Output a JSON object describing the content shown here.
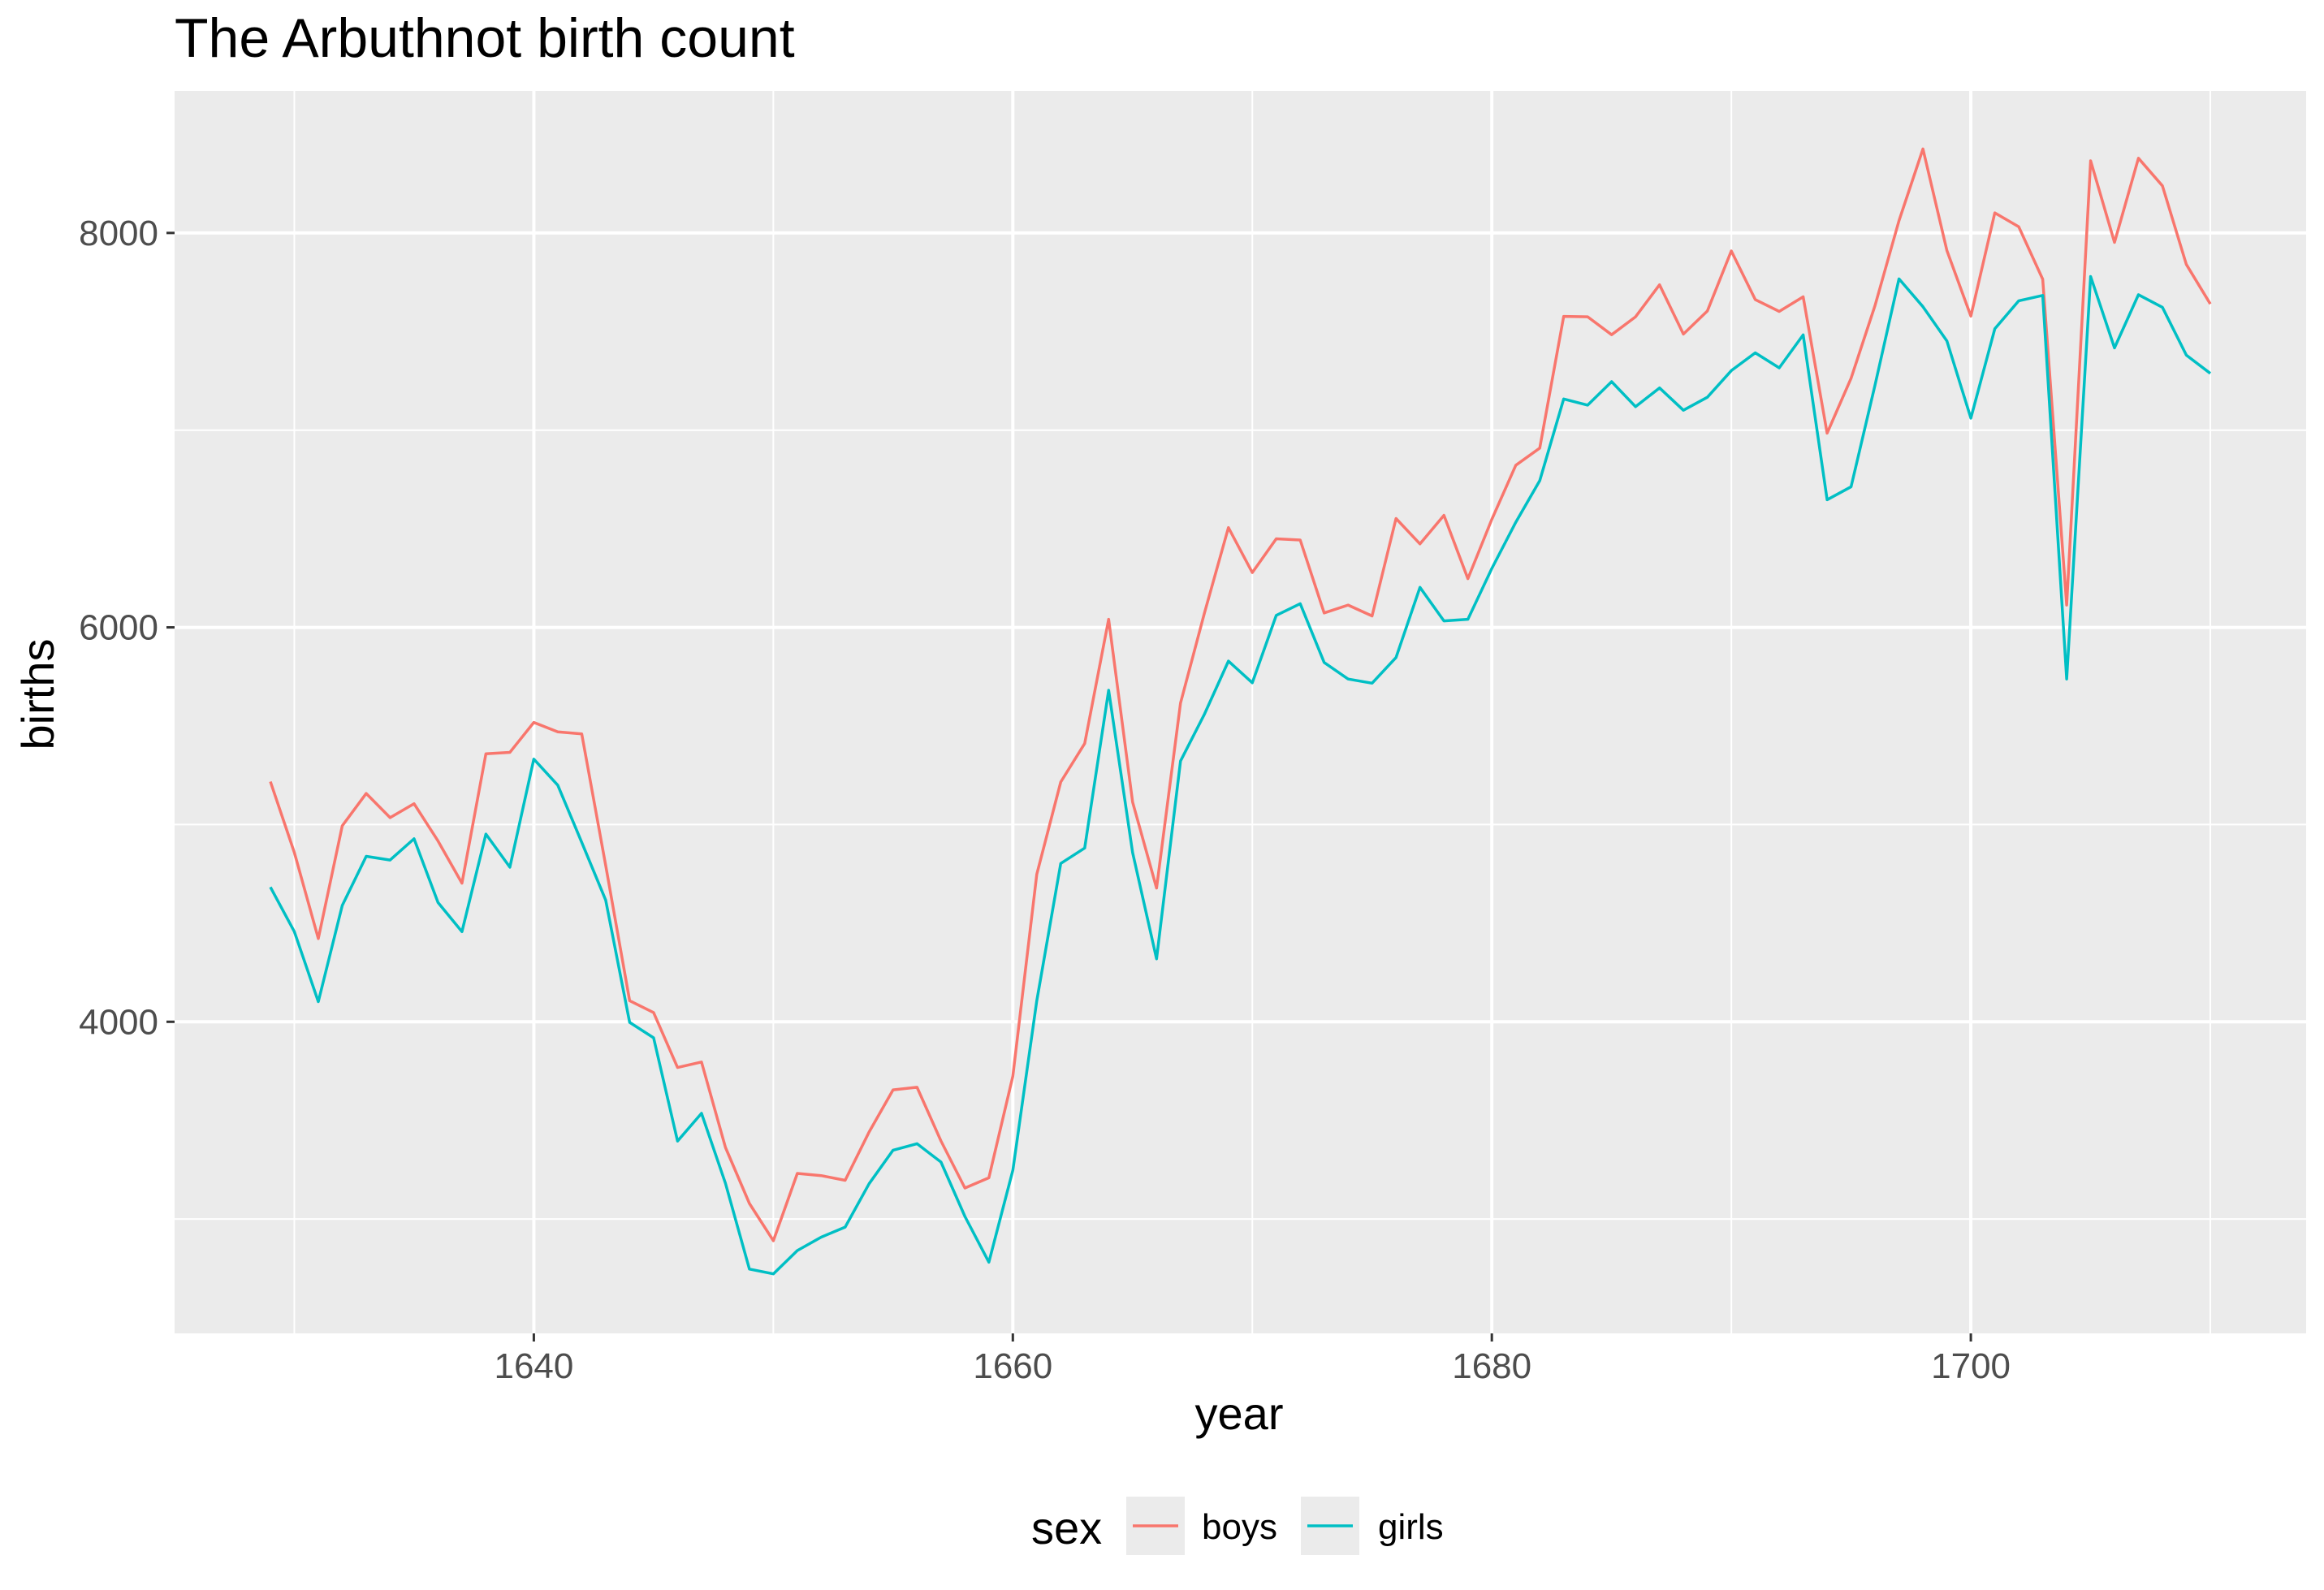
{
  "chart_data": {
    "type": "line",
    "title": "The Arbuthnot birth count",
    "xlabel": "year",
    "ylabel": "births",
    "x_ticks": [
      1640,
      1660,
      1680,
      1700
    ],
    "y_ticks": [
      4000,
      6000,
      8000
    ],
    "xlim": [
      1625,
      1714
    ],
    "ylim": [
      2420,
      8720
    ],
    "grid": true,
    "legend": {
      "title": "sex",
      "position": "bottom",
      "entries": [
        "boys",
        "girls"
      ]
    },
    "x": [
      1629,
      1630,
      1631,
      1632,
      1633,
      1634,
      1635,
      1636,
      1637,
      1638,
      1639,
      1640,
      1641,
      1642,
      1643,
      1644,
      1645,
      1646,
      1647,
      1648,
      1649,
      1650,
      1651,
      1652,
      1653,
      1654,
      1655,
      1656,
      1657,
      1658,
      1659,
      1660,
      1661,
      1662,
      1663,
      1664,
      1665,
      1666,
      1667,
      1668,
      1669,
      1670,
      1671,
      1672,
      1673,
      1674,
      1675,
      1676,
      1677,
      1678,
      1679,
      1680,
      1681,
      1682,
      1683,
      1684,
      1685,
      1686,
      1687,
      1688,
      1689,
      1690,
      1691,
      1692,
      1693,
      1694,
      1695,
      1696,
      1697,
      1698,
      1699,
      1700,
      1701,
      1702,
      1703,
      1704,
      1705,
      1706,
      1707,
      1708,
      1709,
      1710
    ],
    "series": [
      {
        "name": "boys",
        "color": "#F8766D",
        "values": [
          5218,
          4858,
          4422,
          4994,
          5158,
          5035,
          5106,
          4917,
          4703,
          5359,
          5366,
          5518,
          5470,
          5460,
          4793,
          4107,
          4047,
          3768,
          3796,
          3363,
          3079,
          2890,
          3231,
          3220,
          3196,
          3441,
          3655,
          3668,
          3396,
          3157,
          3209,
          3724,
          4748,
          5216,
          5411,
          6041,
          5114,
          4678,
          5616,
          6073,
          6506,
          6278,
          6449,
          6443,
          6073,
          6113,
          6058,
          6552,
          6423,
          6568,
          6247,
          6548,
          6822,
          6909,
          7577,
          7575,
          7484,
          7575,
          7737,
          7487,
          7604,
          7909,
          7662,
          7602,
          7676,
          6985,
          7263,
          7632,
          8062,
          8426,
          7911,
          7578,
          8102,
          8031,
          7765,
          6113,
          8366,
          7952,
          8379,
          8239,
          7840,
          7640
        ]
      },
      {
        "name": "girls",
        "color": "#00BFC4",
        "values": [
          4683,
          4457,
          4102,
          4590,
          4839,
          4820,
          4928,
          4605,
          4457,
          4952,
          4784,
          5332,
          5200,
          4910,
          4617,
          3997,
          3919,
          3395,
          3536,
          3181,
          2746,
          2722,
          2840,
          2908,
          2959,
          3179,
          3349,
          3382,
          3289,
          3013,
          2781,
          3247,
          4107,
          4803,
          4881,
          5681,
          4858,
          4319,
          5322,
          5560,
          5829,
          5719,
          6061,
          6120,
          5822,
          5738,
          5717,
          5847,
          6203,
          6033,
          6041,
          6299,
          6533,
          6744,
          7158,
          7127,
          7246,
          7119,
          7214,
          7101,
          7167,
          7302,
          7392,
          7316,
          7483,
          6647,
          6713,
          7229,
          7767,
          7626,
          7452,
          7061,
          7514,
          7656,
          7683,
          5738,
          7779,
          7417,
          7687,
          7623,
          7380,
          7288
        ]
      }
    ]
  }
}
